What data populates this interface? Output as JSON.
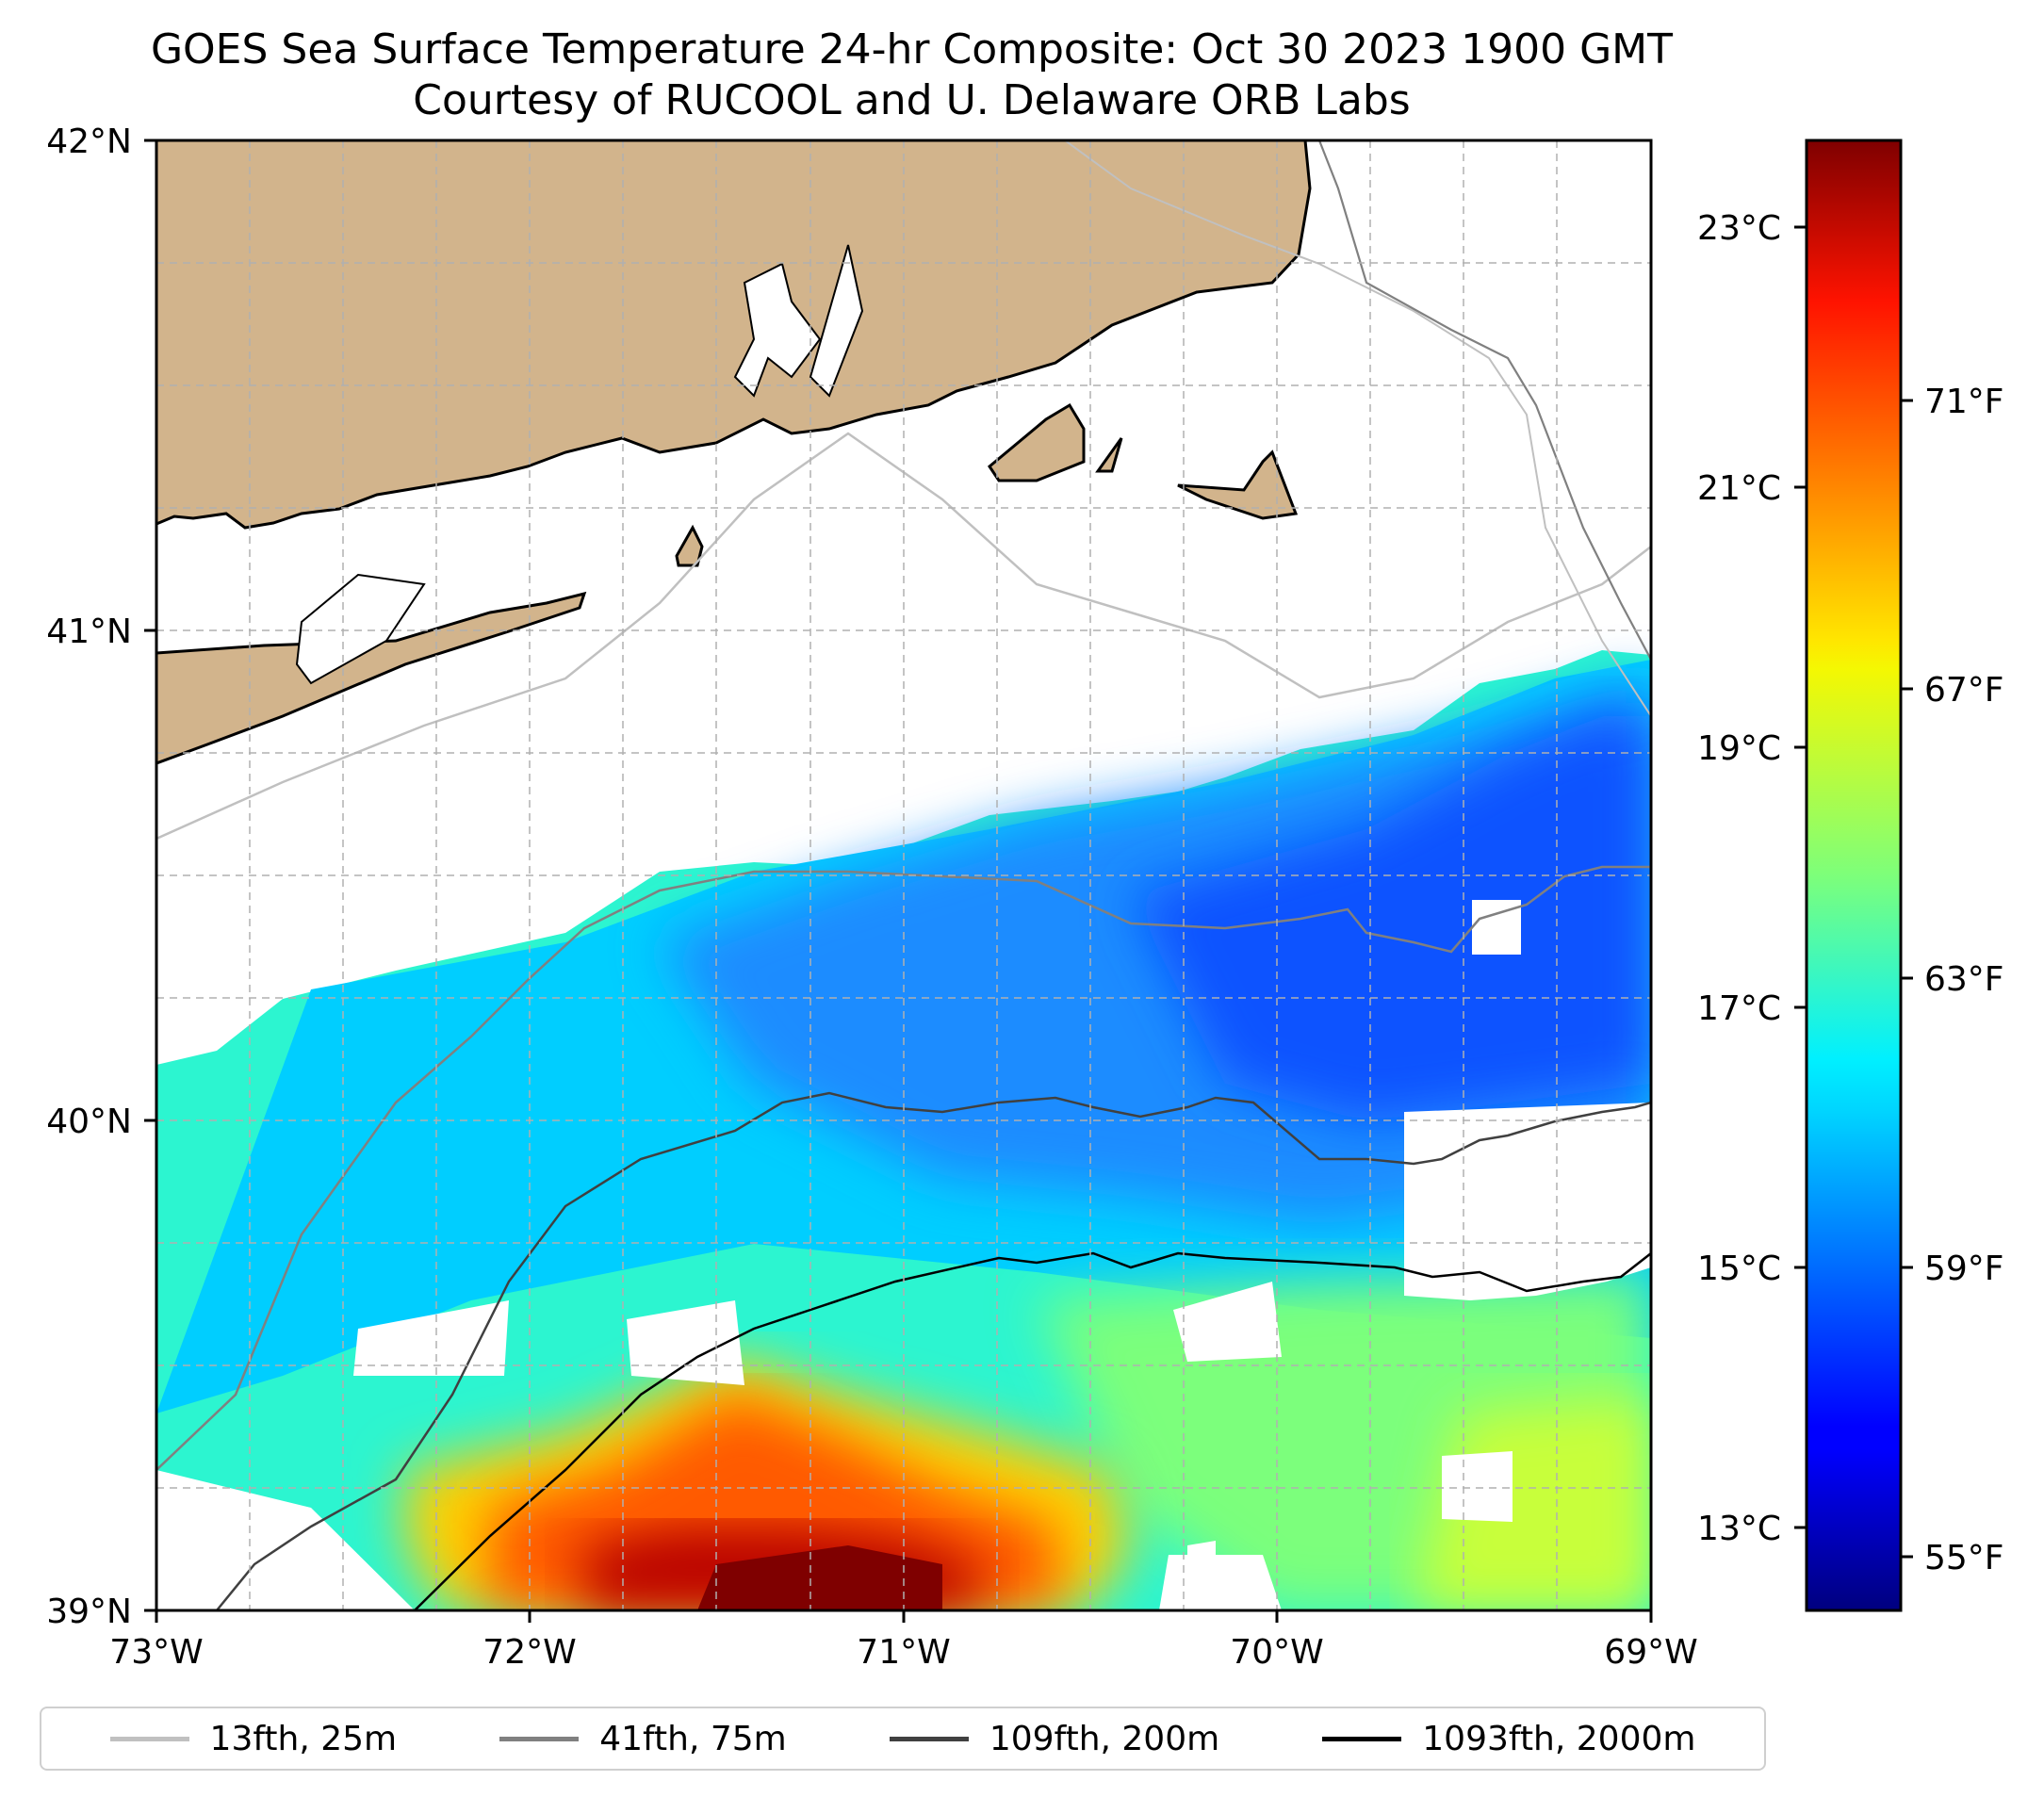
{
  "title": "GOES Sea Surface Temperature 24-hr Composite: Oct 30 2023 1900 GMT",
  "subtitle": "Courtesy of RUCOOL and U. Delaware ORB Labs",
  "axes": {
    "lon_ticks": [
      "73°W",
      "72°W",
      "71°W",
      "70°W",
      "69°W"
    ],
    "lat_ticks": [
      "42°N",
      "41°N",
      "40°N",
      "39°N"
    ],
    "lon_range": [
      -73,
      -69
    ],
    "lat_range": [
      39,
      42
    ]
  },
  "colorbar": {
    "celsius_ticks": [
      "23°C",
      "21°C",
      "19°C",
      "17°C",
      "15°C",
      "13°C"
    ],
    "fahrenheit_ticks": [
      "71°F",
      "67°F",
      "63°F",
      "59°F",
      "55°F"
    ],
    "range_c": [
      12.5,
      23.8
    ],
    "colormap": "jet"
  },
  "legend": [
    {
      "label": "13fth, 25m",
      "color": "#c0c0c0"
    },
    {
      "label": "41fth, 75m",
      "color": "#808080"
    },
    {
      "label": "109fth, 200m",
      "color": "#404040"
    },
    {
      "label": "1093fth, 2000m",
      "color": "#000000"
    }
  ],
  "colors": {
    "land": "#d2b48c",
    "grid": "#b0b0b0"
  }
}
